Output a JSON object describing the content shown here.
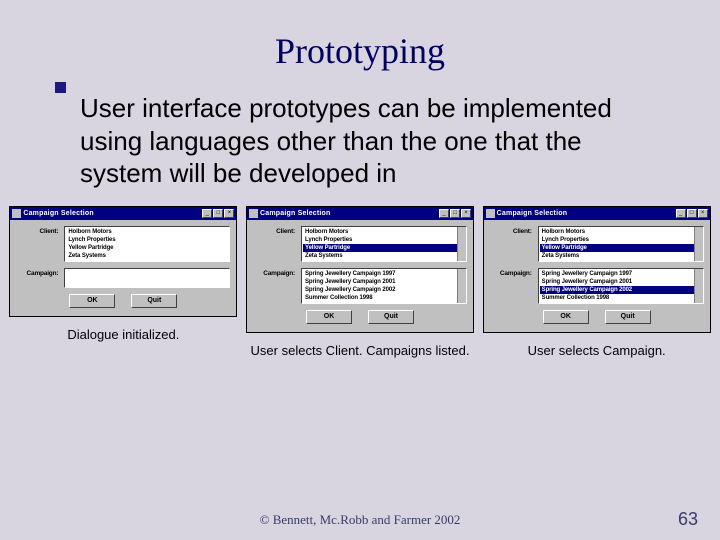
{
  "slide": {
    "title": "Prototyping",
    "body": "User interface prototypes can be implemented using languages other than the one that the system will be developed in",
    "background_color": "#d8d4e0",
    "title_color": "#000060"
  },
  "dialogs": {
    "window_title": "Campaign Selection",
    "client_label": "Client:",
    "campaign_label": "Campaign:",
    "ok_label": "OK",
    "quit_label": "Quit",
    "clients": [
      "Holborn Motors",
      "Lynch Properties",
      "Yellow Partridge",
      "Zeta Systems"
    ],
    "campaigns": [
      "Spring Jewellery Campaign 1997",
      "Spring Jewellery Campaign 2001",
      "Spring Jewellery Campaign 2002",
      "Summer Collection 1998"
    ]
  },
  "captions": {
    "c1": "Dialogue initialized.",
    "c2": "User selects Client. Campaigns listed.",
    "c3": "User selects Campaign."
  },
  "footer": {
    "copyright": "© Bennett, Mc.Robb and Farmer 2002",
    "page": "63"
  },
  "colors": {
    "titlebar": "#000080",
    "selected": "#000080",
    "chrome": "#c0c0c0"
  }
}
